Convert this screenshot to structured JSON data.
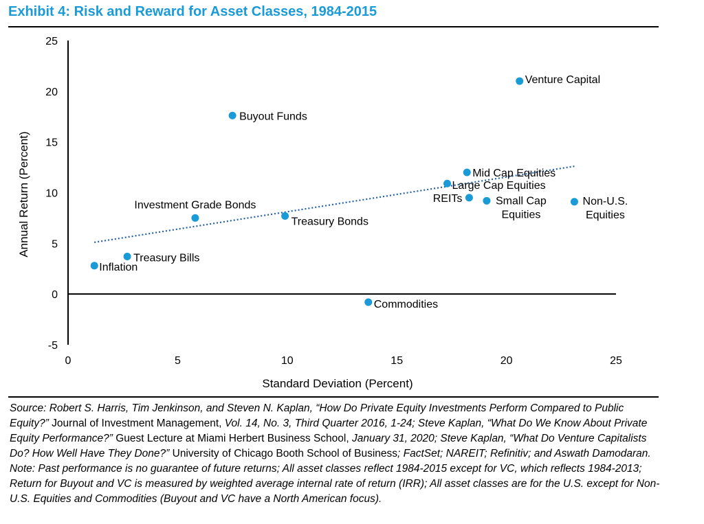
{
  "title": "Exhibit 4: Risk and Reward for Asset Classes, 1984-2015",
  "colors": {
    "accent": "#1a9bd7",
    "point": "#1a9bd7",
    "trend": "#1f5fa8"
  },
  "chart_data": {
    "type": "scatter",
    "title": "Exhibit 4: Risk and Reward for Asset Classes, 1984-2015",
    "xlabel": "Standard Deviation (Percent)",
    "ylabel": "Annual Return (Percent)",
    "xlim": [
      0,
      25
    ],
    "ylim": [
      -5,
      25
    ],
    "xticks": [
      "0",
      "5",
      "10",
      "15",
      "20",
      "25"
    ],
    "yticks": [
      "-5",
      "0",
      "5",
      "10",
      "15",
      "20",
      "25"
    ],
    "grid": false,
    "points": [
      {
        "label": "Inflation",
        "x": 1.2,
        "y": 2.8
      },
      {
        "label": "Treasury Bills",
        "x": 2.7,
        "y": 3.7
      },
      {
        "label": "Investment Grade Bonds",
        "x": 5.8,
        "y": 7.5
      },
      {
        "label": "Buyout Funds",
        "x": 7.5,
        "y": 17.6
      },
      {
        "label": "Treasury Bonds",
        "x": 9.9,
        "y": 7.7
      },
      {
        "label": "Commodities",
        "x": 13.7,
        "y": -0.8
      },
      {
        "label": "Large Cap Equities",
        "x": 17.3,
        "y": 10.9
      },
      {
        "label": "Mid Cap Equities",
        "x": 18.2,
        "y": 12.0
      },
      {
        "label": "REITs",
        "x": 18.3,
        "y": 9.5
      },
      {
        "label": "Small Cap Equities",
        "x": 19.1,
        "y": 9.2
      },
      {
        "label": "Venture Capital",
        "x": 20.6,
        "y": 21.0
      },
      {
        "label": "Non-U.S. Equities",
        "x": 23.1,
        "y": 9.1
      }
    ],
    "trendline": {
      "style": "dotted",
      "x": [
        1.2,
        23.1
      ],
      "y": [
        5.1,
        12.6
      ]
    }
  },
  "notes": {
    "source": [
      {
        "text": "Source: Robert S. Harris, Tim Jenkinson, and Steven N. Kaplan, “How Do Private Equity Investments Perform Compared to Public Equity?”",
        "italic": true
      },
      {
        "text": " Journal of Investment Management, ",
        "italic": false
      },
      {
        "text": "Vol. 14, No. 3, Third Quarter 2016, 1-24; Steve Kaplan, “What Do We Know About Private Equity Performance?”",
        "italic": true
      },
      {
        "text": " Guest Lecture at Miami Herbert Business School, ",
        "italic": false
      },
      {
        "text": "January 31, 2020; Steve Kaplan, “What Do Venture Capitalists Do? How Well Have They Done?”",
        "italic": true
      },
      {
        "text": " University of Chicago Booth School of Business",
        "italic": false
      },
      {
        "text": "; FactSet; NAREIT; Refinitiv; and Aswath Damodaran.",
        "italic": true
      }
    ],
    "note": "Note: Past performance is no guarantee of future returns; All asset classes reflect 1984-2015 except for VC, which reflects 1984-2013; Return for Buyout and VC is measured by weighted average internal rate of return (IRR); All asset classes are for the U.S. except for Non-U.S. Equities and Commodities (Buyout and VC have a North American focus)."
  }
}
